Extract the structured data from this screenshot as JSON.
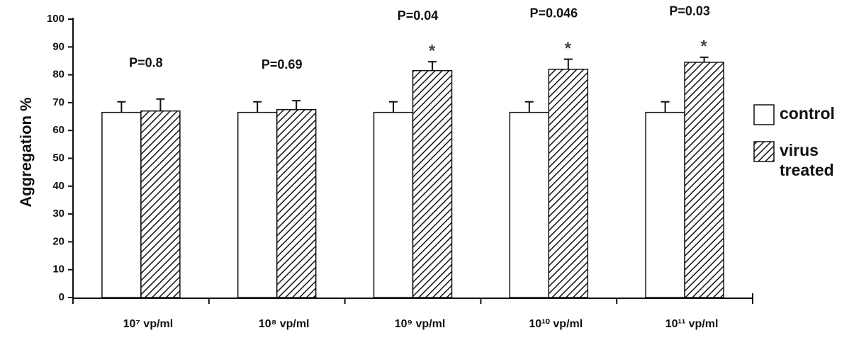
{
  "chart_data": {
    "type": "bar",
    "y_label": "Aggregation %",
    "categories": [
      "10⁷ vp/ml",
      "10⁸ vp/ml",
      "10⁹ vp/ml",
      "10¹⁰ vp/ml",
      "10¹¹ vp/ml"
    ],
    "series": [
      {
        "name": "control",
        "color": "#ffffff",
        "values": [
          66.5,
          66.5,
          66.5,
          66.5,
          66.5
        ],
        "errors": [
          3.8,
          3.8,
          3.8,
          3.8,
          3.8
        ]
      },
      {
        "name": "virus treated",
        "color": "#000000",
        "pattern": "diagonal-hatch",
        "values": [
          67,
          67.5,
          81.5,
          82,
          84.5
        ],
        "errors": [
          4.3,
          3.2,
          3.2,
          3.6,
          1.8
        ]
      }
    ],
    "p_labels": [
      "P=0.8",
      "P=0.69",
      "P=0.04",
      "P=0.046",
      "P=0.03"
    ],
    "significance": [
      null,
      null,
      "*",
      "*",
      "*"
    ],
    "ylim": [
      0,
      100
    ],
    "yticks": [
      0,
      10,
      20,
      30,
      40,
      50,
      60,
      70,
      80,
      90,
      100
    ],
    "legend": "right"
  }
}
